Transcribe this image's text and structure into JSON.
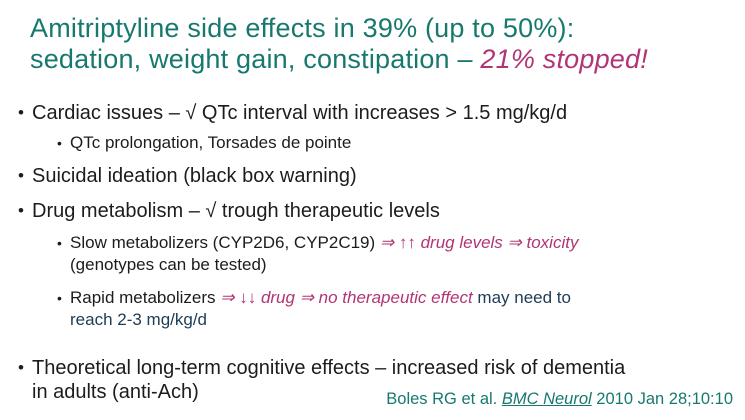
{
  "colors": {
    "teal": "#17796E",
    "magenta": "#B13475",
    "body": "#1C1C1C",
    "navy": "#1F3B55",
    "background": "#FFFFFF"
  },
  "title": {
    "line1": "Amitriptyline side effects in 39% (up to 50%):",
    "line2_plain": "sedation, weight gain, constipation – ",
    "line2_emphasis": "21% stopped!"
  },
  "bullet_marker": "•",
  "bullets": {
    "cardiac": {
      "text": "Cardiac issues – √ QTc interval with increases > 1.5 mg/kg/d",
      "sub": "QTc prolongation, Torsades de pointe"
    },
    "suicidal": {
      "text": "Suicidal ideation (black box warning)"
    },
    "metabolism": {
      "text": "Drug metabolism – √ trough therapeutic levels",
      "slow": {
        "plain": "Slow metabolizers (CYP2D6, CYP2C19) ",
        "emphasis": "⇒ ↑↑ drug levels ⇒ toxicity",
        "line2": "(genotypes can be tested)"
      },
      "rapid": {
        "plain": "Rapid metabolizers ",
        "emphasis": "⇒ ↓↓ drug ⇒ no therapeutic effect",
        "navy_line1": " may need to",
        "navy_line2": "reach 2-3 mg/kg/d"
      }
    },
    "cognitive": {
      "line1": "Theoretical long-term cognitive effects – increased risk of dementia",
      "line2": "in adults (anti-Ach)"
    }
  },
  "citation": {
    "prefix": "Boles RG et al. ",
    "journal": "BMC Neurol",
    "suffix": " 2010 Jan 28;10:10"
  }
}
